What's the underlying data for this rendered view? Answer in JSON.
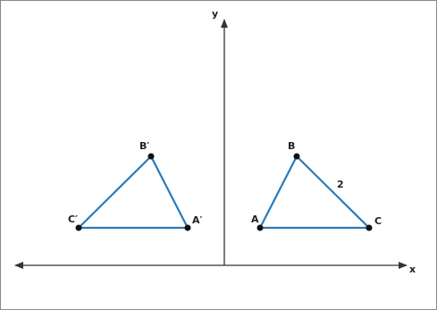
{
  "axes": {
    "x_label": "x",
    "y_label": "y"
  },
  "triangle": {
    "points": {
      "A": "A",
      "B": "B",
      "C": "C"
    },
    "side_label": "2"
  },
  "image": {
    "points": {
      "A": "A′",
      "B": "B′",
      "C": "C′"
    }
  }
}
